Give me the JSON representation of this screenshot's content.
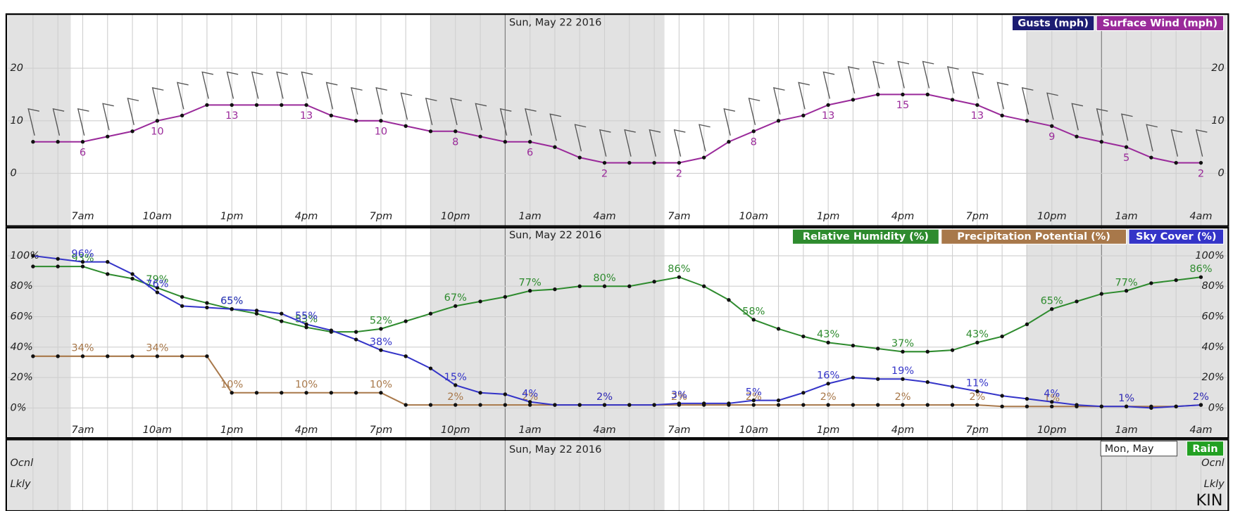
{
  "chart_data": [
    {
      "type": "line",
      "date_label": "Sun, May 22 2016",
      "categories": [
        null,
        null,
        "7am",
        null,
        null,
        "10am",
        null,
        null,
        "1pm",
        null,
        null,
        "4pm",
        null,
        null,
        "7pm",
        null,
        null,
        "10pm",
        null,
        null,
        "1am",
        null,
        null,
        "4am",
        null,
        null,
        "7am",
        null,
        null,
        "10am",
        null,
        null,
        "1pm",
        null,
        null,
        "4pm",
        null,
        null,
        "7pm",
        null,
        null,
        "10pm",
        null,
        null,
        "1am",
        null,
        null,
        "4am"
      ],
      "series": [
        {
          "name": "Gusts (mph)",
          "color": "#1c1c72"
        },
        {
          "name": "Surface Wind (mph)",
          "color": "#9a2a9a",
          "values": [
            6,
            6,
            6,
            7,
            8,
            10,
            11,
            13,
            13,
            13,
            13,
            13,
            11,
            10,
            10,
            9,
            8,
            8,
            7,
            6,
            6,
            5,
            3,
            2,
            2,
            2,
            2,
            3,
            6,
            8,
            10,
            11,
            13,
            14,
            15,
            15,
            15,
            14,
            13,
            11,
            10,
            9,
            7,
            6,
            5,
            3,
            2,
            2
          ]
        }
      ],
      "ylim": [
        -6,
        27
      ],
      "yticks": [
        0,
        10,
        20
      ],
      "grid": true
    },
    {
      "type": "line",
      "date_label": "Sun, May 22 2016",
      "categories": [
        null,
        null,
        "7am",
        null,
        null,
        "10am",
        null,
        null,
        "1pm",
        null,
        null,
        "4pm",
        null,
        null,
        "7pm",
        null,
        null,
        "10pm",
        null,
        null,
        "1am",
        null,
        null,
        "4am",
        null,
        null,
        "7am",
        null,
        null,
        "10am",
        null,
        null,
        "1pm",
        null,
        null,
        "4pm",
        null,
        null,
        "7pm",
        null,
        null,
        "10pm",
        null,
        null,
        "1am",
        null,
        null,
        "4am"
      ],
      "series": [
        {
          "name": "Relative Humidity (%)",
          "color": "#2e8b2e",
          "values": [
            93,
            93,
            93,
            88,
            85,
            79,
            73,
            69,
            65,
            62,
            57,
            53,
            50,
            50,
            52,
            57,
            62,
            67,
            70,
            73,
            77,
            78,
            80,
            80,
            80,
            83,
            86,
            80,
            71,
            58,
            52,
            47,
            43,
            41,
            39,
            37,
            37,
            38,
            43,
            47,
            55,
            65,
            70,
            75,
            77,
            82,
            84,
            86
          ],
          "value_labels": [
            null,
            null,
            "93%",
            null,
            null,
            "79%",
            null,
            null,
            "65%",
            null,
            null,
            "53%",
            null,
            null,
            "52%",
            null,
            null,
            "67%",
            null,
            null,
            "77%",
            null,
            null,
            "80%",
            null,
            null,
            "86%",
            null,
            null,
            "58%",
            null,
            null,
            "43%",
            null,
            null,
            "37%",
            null,
            null,
            "43%",
            null,
            null,
            "65%",
            null,
            null,
            "77%",
            null,
            null,
            "86%"
          ]
        },
        {
          "name": "Precipitation Potential (%)",
          "color": "#a8784a",
          "values": [
            34,
            34,
            34,
            34,
            34,
            34,
            34,
            34,
            10,
            10,
            10,
            10,
            10,
            10,
            10,
            2,
            2,
            2,
            2,
            2,
            2,
            2,
            2,
            2,
            2,
            2,
            2,
            2,
            2,
            2,
            2,
            2,
            2,
            2,
            2,
            2,
            2,
            2,
            2,
            1,
            1,
            1,
            1,
            1,
            1,
            1,
            1,
            2
          ],
          "value_labels": [
            null,
            null,
            "34%",
            null,
            null,
            "34%",
            null,
            null,
            "10%",
            null,
            null,
            "10%",
            null,
            null,
            "10%",
            null,
            null,
            "2%",
            null,
            null,
            "2%",
            null,
            null,
            "2%",
            null,
            null,
            "2%",
            null,
            null,
            "2%",
            null,
            null,
            "2%",
            null,
            null,
            "2%",
            null,
            null,
            "2%",
            null,
            null,
            "1%",
            null,
            null,
            "1%",
            null,
            null,
            "2%"
          ]
        },
        {
          "name": "Sky Cover (%)",
          "color": "#3434c8",
          "values": [
            100,
            98,
            96,
            96,
            88,
            76,
            67,
            66,
            65,
            64,
            62,
            55,
            51,
            45,
            38,
            34,
            26,
            15,
            10,
            9,
            4,
            2,
            2,
            2,
            2,
            2,
            3,
            3,
            3,
            5,
            5,
            10,
            16,
            20,
            19,
            19,
            17,
            14,
            11,
            8,
            6,
            4,
            2,
            1,
            1,
            0,
            1,
            2
          ],
          "value_labels": [
            null,
            null,
            "96%",
            null,
            null,
            "76%",
            null,
            null,
            "65%",
            null,
            null,
            "55%",
            null,
            null,
            "38%",
            null,
            null,
            "15%",
            null,
            null,
            "4%",
            null,
            null,
            "2%",
            null,
            null,
            "3%",
            null,
            null,
            "5%",
            null,
            null,
            "16%",
            null,
            null,
            "19%",
            null,
            null,
            "11%",
            null,
            null,
            "4%",
            null,
            null,
            "1%",
            null,
            null,
            "2%"
          ]
        }
      ],
      "ylim": [
        -12,
        118
      ],
      "yticks": [
        {
          "value": 0,
          "label": "0%"
        },
        {
          "value": 20,
          "label": "20%"
        },
        {
          "value": 40,
          "label": "40%"
        },
        {
          "value": 60,
          "label": "60%"
        },
        {
          "value": 80,
          "label": "80%"
        },
        {
          "value": 100,
          "label": "100%"
        }
      ],
      "grid": true
    },
    {
      "type": "strip",
      "date_label": "Sun, May 22 2016",
      "end_date_label": "Mon, May",
      "series": [
        {
          "name": "Rain",
          "color": "#22a022"
        }
      ],
      "ylabels": [
        "Ocnl",
        "Lkly"
      ]
    }
  ],
  "watermark": "KIN"
}
